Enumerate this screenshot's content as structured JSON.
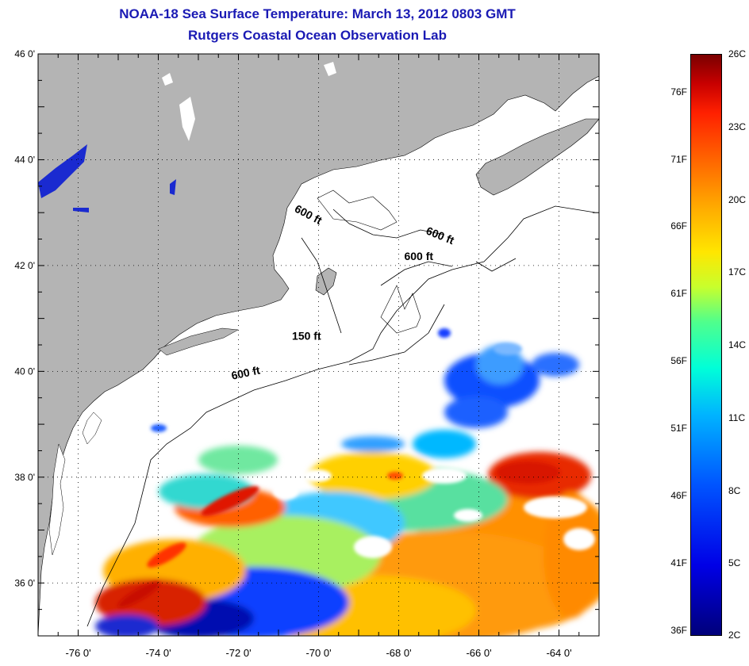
{
  "title": {
    "line1": "NOAA-18 Sea Surface Temperature:  March 13, 2012 0803 GMT",
    "line2": "Rutgers Coastal Ocean Observation Lab"
  },
  "map": {
    "lat_labels": [
      "46 0'",
      "44 0'",
      "42 0'",
      "40 0'",
      "38 0'",
      "36 0'"
    ],
    "lat_values": [
      46,
      44,
      42,
      40,
      38,
      36
    ],
    "lon_labels": [
      "-76 0'",
      "-74 0'",
      "-72 0'",
      "-70 0'",
      "-68 0'",
      "-66 0'",
      "-64 0'"
    ],
    "lon_values": [
      -76,
      -74,
      -72,
      -70,
      -68,
      -66,
      -64
    ],
    "lat_range": [
      35,
      46
    ],
    "lon_range": [
      -77,
      -63
    ],
    "grid": "dotted",
    "isobaths": [
      {
        "label": "600 ft",
        "lon": -70.3,
        "lat": 42.9
      },
      {
        "label": "600 ft",
        "lon": -67.0,
        "lat": 42.5
      },
      {
        "label": "600 ft",
        "lon": -67.5,
        "lat": 42.1
      },
      {
        "label": "150 ft",
        "lon": -70.3,
        "lat": 40.6
      },
      {
        "label": "600 ft",
        "lon": -71.8,
        "lat": 39.9
      }
    ],
    "colors": {
      "land": "#b4b4b4",
      "water_cloud": "#ffffff",
      "title": "#1a1ab4"
    }
  },
  "colorbar": {
    "fahrenheit_labels": [
      "76F",
      "71F",
      "66F",
      "61F",
      "56F",
      "51F",
      "46F",
      "41F",
      "36F"
    ],
    "celsius_labels": [
      "26C",
      "23C",
      "20C",
      "17C",
      "14C",
      "11C",
      "8C",
      "5C",
      "2C"
    ],
    "range_c": [
      2,
      26
    ]
  }
}
